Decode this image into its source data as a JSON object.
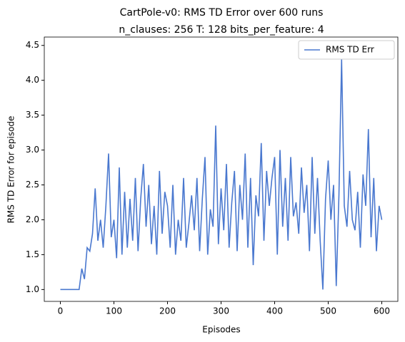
{
  "chart_data": {
    "type": "line",
    "title": "CartPole-v0: RMS TD Error over 600 runs",
    "subtitle": "n_clauses: 256 T: 128 bits_per_feature: 4",
    "x_label": "Episodes",
    "y_label": "RMS TD Error for episode",
    "x": [
      0,
      5,
      10,
      15,
      20,
      25,
      30,
      35,
      40,
      45,
      50,
      55,
      60,
      65,
      70,
      75,
      80,
      85,
      90,
      95,
      100,
      105,
      110,
      115,
      120,
      125,
      130,
      135,
      140,
      145,
      150,
      155,
      160,
      165,
      170,
      175,
      180,
      185,
      190,
      195,
      200,
      205,
      210,
      215,
      220,
      225,
      230,
      235,
      240,
      245,
      250,
      255,
      260,
      265,
      270,
      275,
      280,
      285,
      290,
      295,
      300,
      305,
      310,
      315,
      320,
      325,
      330,
      335,
      340,
      345,
      350,
      355,
      360,
      365,
      370,
      375,
      380,
      385,
      390,
      395,
      400,
      405,
      410,
      415,
      420,
      425,
      430,
      435,
      440,
      445,
      450,
      455,
      460,
      465,
      470,
      475,
      480,
      485,
      490,
      495,
      500,
      505,
      510,
      515,
      520,
      525,
      530,
      535,
      540,
      545,
      550,
      555,
      560,
      565,
      570,
      575,
      580,
      585,
      590,
      595,
      600
    ],
    "series": [
      {
        "name": "RMS TD Err",
        "color": "#4a78cf",
        "values": [
          1.0,
          1.0,
          1.0,
          1.0,
          1.0,
          1.0,
          1.0,
          1.0,
          1.3,
          1.15,
          1.6,
          1.55,
          1.8,
          2.45,
          1.7,
          2.0,
          1.6,
          2.2,
          2.95,
          1.75,
          2.0,
          1.45,
          2.75,
          1.5,
          2.4,
          1.6,
          2.3,
          1.7,
          2.6,
          1.55,
          2.3,
          2.8,
          1.9,
          2.5,
          1.65,
          2.2,
          1.5,
          2.7,
          1.8,
          2.4,
          2.2,
          1.6,
          2.5,
          1.5,
          2.0,
          1.7,
          2.6,
          1.6,
          1.95,
          2.35,
          1.85,
          2.6,
          1.55,
          2.3,
          2.9,
          1.5,
          2.15,
          1.9,
          3.35,
          1.65,
          2.45,
          1.85,
          2.8,
          1.6,
          2.25,
          2.7,
          1.55,
          2.5,
          2.0,
          2.95,
          1.6,
          2.6,
          1.35,
          2.35,
          2.05,
          3.1,
          1.7,
          2.7,
          2.2,
          2.6,
          2.9,
          1.5,
          3.0,
          1.9,
          2.6,
          1.7,
          2.9,
          2.05,
          2.25,
          1.8,
          2.75,
          2.1,
          2.5,
          1.55,
          2.9,
          1.8,
          2.6,
          1.7,
          1.0,
          2.3,
          2.85,
          2.0,
          2.5,
          1.05,
          2.35,
          4.3,
          2.2,
          1.9,
          2.7,
          2.0,
          1.85,
          2.4,
          1.6,
          2.65,
          2.2,
          3.3,
          1.75,
          2.6,
          1.55,
          2.2,
          2.0
        ]
      }
    ],
    "xlim": [
      -30,
      630
    ],
    "ylim": [
      0.83,
      4.62
    ],
    "xticks": [
      0,
      100,
      200,
      300,
      400,
      500,
      600
    ],
    "yticks": [
      {
        "value": 1,
        "label": "1.0"
      },
      {
        "value": 1.5,
        "label": "1.5"
      },
      {
        "value": 2,
        "label": "2.0"
      },
      {
        "value": 2.5,
        "label": "2.5"
      },
      {
        "value": 3,
        "label": "3.0"
      },
      {
        "value": 3.5,
        "label": "3.5"
      },
      {
        "value": 4,
        "label": "4.0"
      },
      {
        "value": 4.5,
        "label": "4.5"
      }
    ],
    "legend": "upper right"
  }
}
